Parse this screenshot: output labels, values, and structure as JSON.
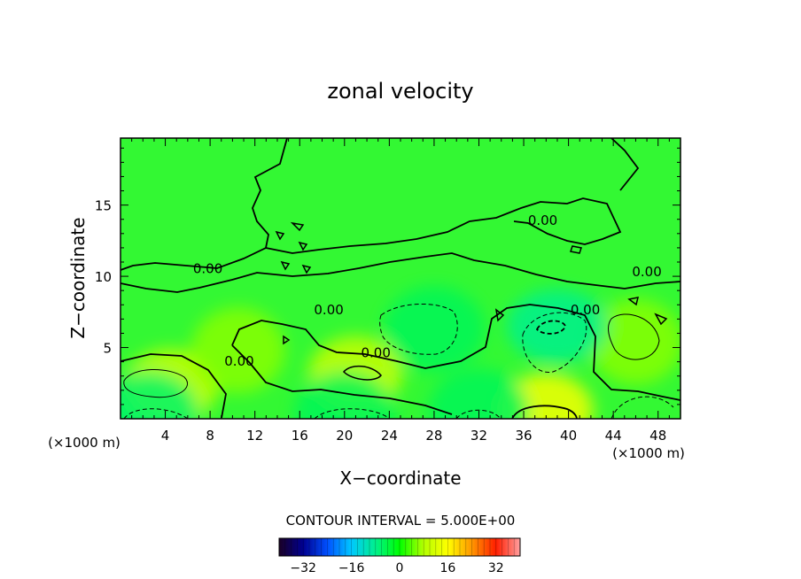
{
  "chart_data": {
    "type": "contour",
    "title": "zonal velocity",
    "xlabel": "X−coordinate",
    "ylabel": "Z−coordinate",
    "x_unit": "(×1000 m)",
    "xlim": [
      0,
      50
    ],
    "ylim": [
      0,
      19.7
    ],
    "x_ticks": [
      4,
      8,
      12,
      16,
      20,
      24,
      28,
      32,
      36,
      40,
      44,
      48
    ],
    "y_ticks": [
      5,
      10,
      15
    ],
    "contour_interval_text": "CONTOUR INTERVAL = 5.000E+00",
    "contour_label": "0.00",
    "contour_labels": [
      {
        "text": "0.00",
        "x": 7.8,
        "z": 10.5
      },
      {
        "text": "0.00",
        "x": 18.6,
        "z": 7.6
      },
      {
        "text": "0.00",
        "x": 10.6,
        "z": 4.0
      },
      {
        "text": "0.00",
        "x": 22.8,
        "z": 4.6
      },
      {
        "text": "0.00",
        "x": 37.7,
        "z": 13.9
      },
      {
        "text": "0.00",
        "x": 41.5,
        "z": 7.6
      },
      {
        "text": "0.00",
        "x": 47.0,
        "z": 10.3
      }
    ],
    "features": [
      {
        "kind": "positive",
        "x": 4.5,
        "z": 2.3,
        "value": 10
      },
      {
        "kind": "positive",
        "x": 10.5,
        "z": 4.8,
        "value": 6
      },
      {
        "kind": "positive",
        "x": 21.0,
        "z": 3.2,
        "value": 10
      },
      {
        "kind": "positive",
        "x": 38.0,
        "z": 0.6,
        "value": 15
      },
      {
        "kind": "positive",
        "x": 46.0,
        "z": 5.4,
        "value": 6
      },
      {
        "kind": "negative",
        "x": 28.0,
        "z": 6.3,
        "value": -5
      },
      {
        "kind": "negative",
        "x": 39.0,
        "z": 6.5,
        "value": -8
      },
      {
        "kind": "negative",
        "x": 2.5,
        "z": 0.3,
        "value": -6
      },
      {
        "kind": "negative",
        "x": 20.0,
        "z": 0.3,
        "value": -5
      },
      {
        "kind": "negative",
        "x": 32.0,
        "z": 0.5,
        "value": -5
      }
    ],
    "colorbar": {
      "min": -40,
      "max": 40,
      "ticks": [
        -32,
        -16,
        0,
        16,
        32
      ],
      "colormap": "rainbow",
      "colors": [
        "#1a0026",
        "#000090",
        "#0050ff",
        "#00c8ff",
        "#00f08c",
        "#00ff00",
        "#b4ff00",
        "#ffff00",
        "#ff9600",
        "#ff1e00",
        "#ffa0a0"
      ]
    },
    "grid": false
  }
}
